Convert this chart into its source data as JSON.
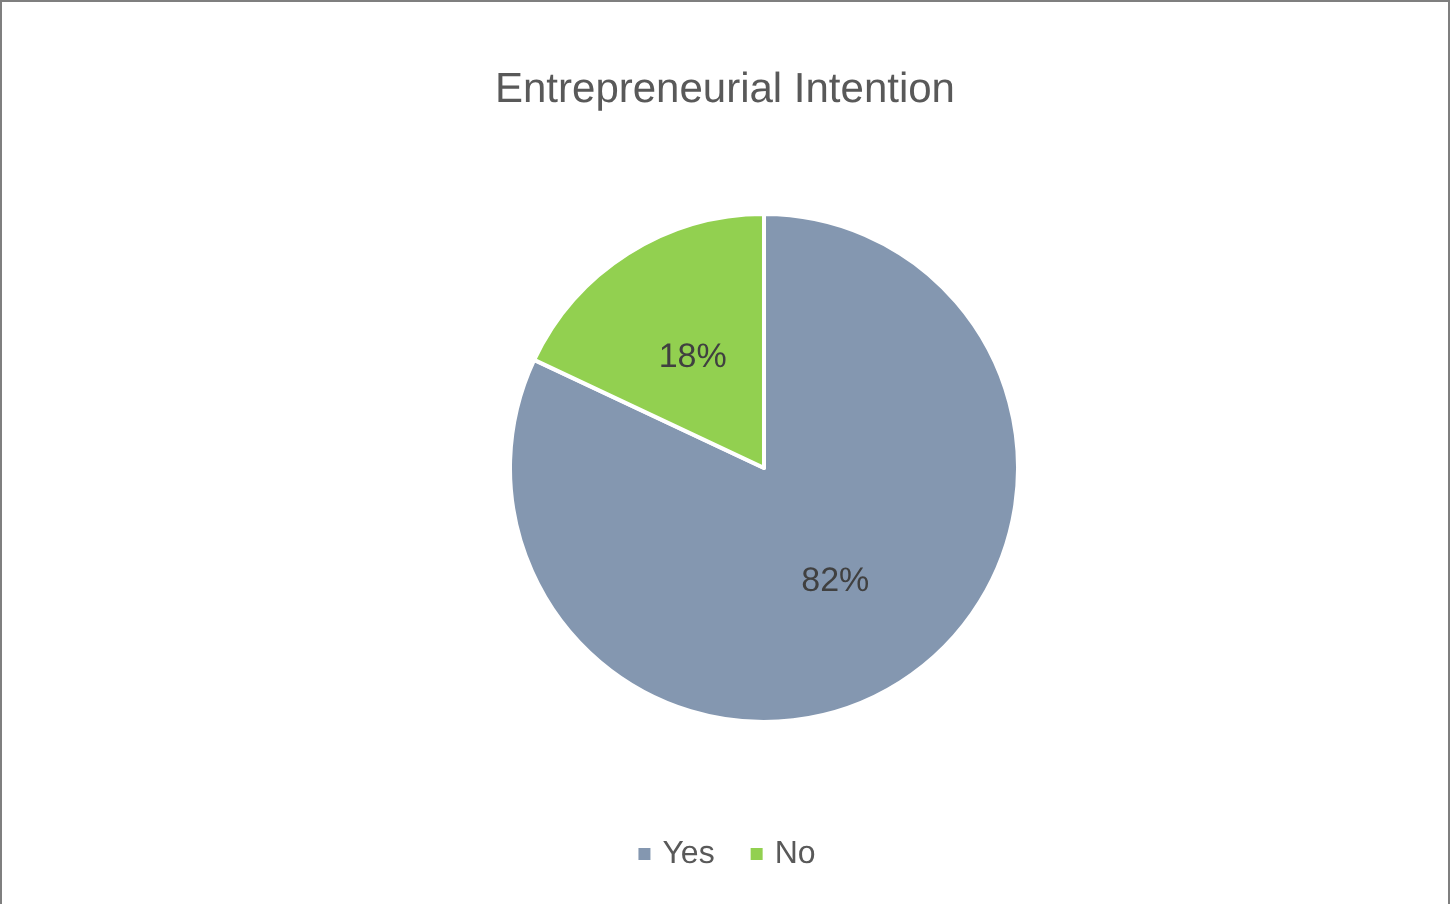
{
  "chart_data": {
    "type": "pie",
    "title": "Entrepreneurial Intention",
    "categories": [
      "Yes",
      "No"
    ],
    "values": [
      82,
      18
    ],
    "value_labels": [
      "82%",
      "18%"
    ],
    "colors": [
      "#8497b0",
      "#92d050"
    ],
    "legend": "bottom"
  }
}
